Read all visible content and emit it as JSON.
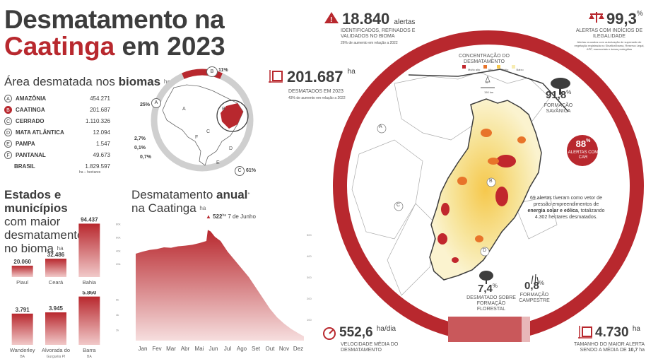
{
  "title": {
    "line1": "Desmatamento na",
    "line2a": "Caatinga",
    "line2b": " em 2023"
  },
  "biomes": {
    "title_a": "Área desmatada nos ",
    "title_b": "biomas",
    "title_unit": "ha",
    "rows": [
      {
        "letter": "A",
        "name": "AMAZÔNIA",
        "value": "454.271",
        "selected": false
      },
      {
        "letter": "B",
        "name": "CAATINGA",
        "value": "201.687",
        "selected": true
      },
      {
        "letter": "C",
        "name": "CERRADO",
        "value": "1.110.326",
        "selected": false
      },
      {
        "letter": "D",
        "name": "MATA ATLÂNTICA",
        "value": "12.094",
        "selected": false
      },
      {
        "letter": "E",
        "name": "PAMPA",
        "value": "1.547",
        "selected": false
      },
      {
        "letter": "F",
        "name": "PANTANAL",
        "value": "49.673",
        "selected": false
      }
    ],
    "total_label": "BRASIL",
    "total_value": "1.829.597",
    "total_note": "ha – hectares"
  },
  "donut": {
    "labels": {
      "b": "11%",
      "a": "25%",
      "c": "61%",
      "f": "2,7%",
      "e": "0,1%",
      "d": "0,7%"
    },
    "share_values": [
      {
        "biome": "B",
        "percent": 11
      },
      {
        "biome": "C",
        "percent": 61
      },
      {
        "biome": "D",
        "percent": 0.7
      },
      {
        "biome": "E",
        "percent": 0.1
      },
      {
        "biome": "F",
        "percent": 2.7
      },
      {
        "biome": "A",
        "percent": 25
      }
    ],
    "map_letters": [
      "A",
      "B",
      "C",
      "D",
      "E",
      "F"
    ]
  },
  "states": {
    "title_a": "Estados e municípios",
    "title_b": "com maior",
    "title_c": "desmatamento",
    "title_d": "no bioma",
    "unit": "ha"
  },
  "annual": {
    "title_a": "Desmatamento ",
    "title_b": "anual",
    "title_sup": "*",
    "title_c": "na Caatinga",
    "unit": "ha",
    "peak_value": "522",
    "peak_unit": "ha",
    "peak_date": "7 de Junho"
  },
  "stats": {
    "alerts_value": "18.840",
    "alerts_label": "alertas",
    "alerts_caption": "IDENTIFICADOS, REFINADOS E VALIDADOS NO BIOMA",
    "alerts_note": "26% de aumento em relação a 2022",
    "illegal_value": "99,3",
    "illegal_unit": "%",
    "illegal_caption": "ALERTAS COM INDÍCIOS DE ILEGALIDADE",
    "illegal_note": "Alertas cruzados com autorização de supressão de vegetação registrada no Sinaflor/Ibama, Reserva Legal, APP, mananciais e áreas protegidas",
    "area_value": "201.687",
    "area_unit": "ha",
    "area_caption": "DESMATADOS EM 2023",
    "area_note": "43% de aumento em relação a 2022",
    "concentration_title": "CONCENTRAÇÃO DO DESMATAMENTO",
    "legend": [
      {
        "label": "Muito alto",
        "color": "#c1272d"
      },
      {
        "label": "Alto",
        "color": "#e8742a"
      },
      {
        "label": "Médio",
        "color": "#f6c84c"
      },
      {
        "label": "Baixo",
        "color": "#f7ecb1"
      }
    ],
    "scale_label": "150 km",
    "north_label": "N",
    "savanna_value": "91,8",
    "savanna_unit": "%",
    "savanna_caption": "FORMAÇÃO SAVÂNICA",
    "car_value": "88",
    "car_unit": "%",
    "car_caption": "ALERTAS COM CAR",
    "wind_text_a": "69 alertas tiveram como vetor de pressão empreendimentos de ",
    "wind_text_b": "energia solar e eólica",
    "wind_text_c": ", totalizando 4.302 hectares desmatados.",
    "forest_value": "7,4",
    "forest_unit": "%",
    "forest_caption": "DESMATADO SOBRE FORMAÇÃO FLORESTAL",
    "field_value": "0,8",
    "field_unit": "%",
    "field_caption": "FORMAÇÃO CAMPESTRE",
    "speed_value": "552,6",
    "speed_unit": "ha/dia",
    "speed_caption": "VELOCIDADE MÉDIA DO DESMATAMENTO",
    "max_value": "4.730",
    "max_unit": "ha",
    "max_caption_a": "TAMANHO DO MAIOR ALERTA",
    "max_caption_b": "SENDO A MÉDIA DE ",
    "max_caption_avg": "10,7",
    "max_caption_unit": "ha",
    "map_letters": [
      "A",
      "B",
      "C",
      "D"
    ]
  },
  "colors": {
    "accent": "#b8282e",
    "dark": "#3d3d3d",
    "ring": "#b8282e"
  },
  "chart_data": [
    {
      "type": "bar",
      "title": "Estados",
      "categories": [
        "Piauí",
        "Ceará",
        "Bahia"
      ],
      "values": [
        20060,
        32486,
        94437
      ],
      "value_labels": [
        "20.060",
        "32.486",
        "94.437"
      ],
      "ylim": [
        0,
        100000
      ],
      "ticks": [
        "20k",
        "40k",
        "60k",
        "80k"
      ]
    },
    {
      "type": "bar",
      "title": "Municípios",
      "categories": [
        "Wanderley BA",
        "Alvorada do Gurguéia PI",
        "Barra BA"
      ],
      "values": [
        3791,
        3945,
        5860
      ],
      "value_labels": [
        "3.791",
        "3.945",
        "5.860"
      ],
      "ylim": [
        0,
        6000
      ],
      "ticks": [
        "2k",
        "4k",
        "6k"
      ]
    },
    {
      "type": "area",
      "title": "Desmatamento anual na Caatinga",
      "xlabel": "",
      "ylabel": "ha",
      "categories": [
        "Jan",
        "Fev",
        "Mar",
        "Abr",
        "Mai",
        "Jun",
        "Jul",
        "Ago",
        "Set",
        "Out",
        "Nov",
        "Dez"
      ],
      "ylim": [
        0,
        560
      ],
      "ticks": [
        "100",
        "200",
        "300",
        "400",
        "500"
      ],
      "x": [
        0,
        0.5,
        1,
        1.5,
        2,
        2.5,
        3,
        3.5,
        4,
        4.5,
        5,
        5.1,
        5.3,
        5.6,
        6,
        6.5,
        7,
        7.5,
        8,
        8.5,
        9,
        9.5,
        10,
        10.5,
        11,
        11.5,
        11.9
      ],
      "y": [
        410,
        420,
        428,
        432,
        440,
        438,
        445,
        448,
        452,
        460,
        470,
        522,
        515,
        490,
        470,
        420,
        380,
        340,
        300,
        250,
        200,
        150,
        110,
        80,
        55,
        35,
        20
      ]
    }
  ]
}
